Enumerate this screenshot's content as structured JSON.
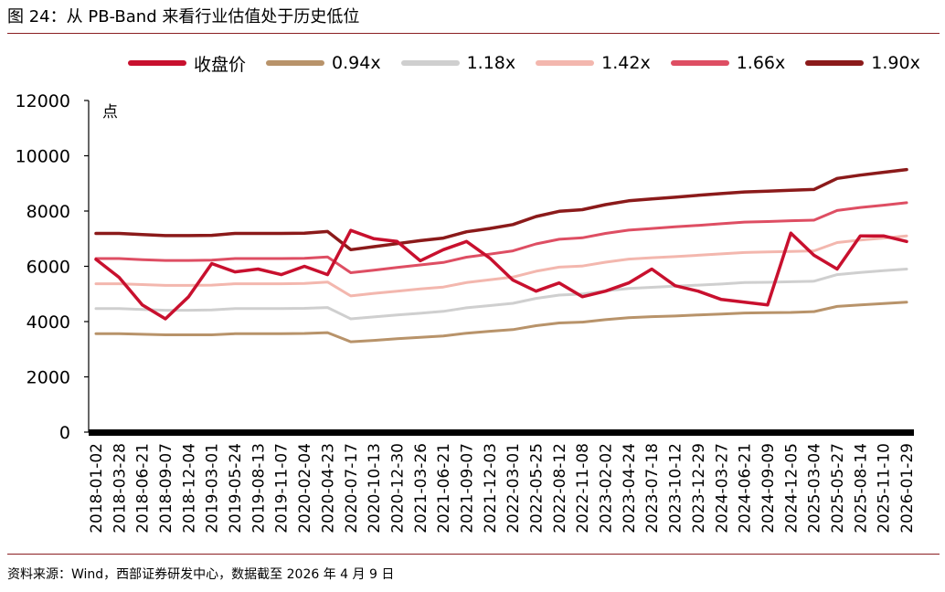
{
  "figure": {
    "title": "图 24：从 PB-Band 来看行业估值处于历史低位",
    "source": "资料来源：Wind，西部证券研发中心，数据截至 2026 年 4 月 9 日"
  },
  "chart_data": {
    "type": "line",
    "ylabel": "点",
    "xlabel": "",
    "ylim": [
      0,
      12000
    ],
    "yticks": [
      0,
      2000,
      4000,
      6000,
      8000,
      10000,
      12000
    ],
    "grid": false,
    "legend_position": "top",
    "x_tick_labels": [
      "2018-01-02",
      "2018-03-28",
      "2018-06-21",
      "2018-09-07",
      "2018-12-04",
      "2019-03-01",
      "2019-05-24",
      "2019-08-13",
      "2019-11-07",
      "2020-02-04",
      "2020-04-23",
      "2020-07-17",
      "2020-10-13",
      "2020-12-30",
      "2021-03-26",
      "2021-06-21",
      "2021-09-07",
      "2021-12-03",
      "2022-03-01",
      "2022-05-25",
      "2022-08-12",
      "2022-11-08",
      "2023-02-02",
      "2023-04-24",
      "2023-07-18",
      "2023-10-12",
      "2023-12-29",
      "2024-03-27",
      "2024-06-21",
      "2024-09-09",
      "2024-12-05",
      "2025-03-04",
      "2025-05-27",
      "2025-08-14",
      "2025-11-10",
      "2026-01-29"
    ],
    "series": [
      {
        "name": "收盘价",
        "color": "#c8102e",
        "width": 3.5,
        "values": [
          6250,
          5600,
          4600,
          4100,
          4900,
          6100,
          5800,
          5900,
          5700,
          6000,
          5700,
          7300,
          7000,
          6900,
          6200,
          6600,
          6900,
          6300,
          5500,
          5100,
          5400,
          4900,
          5100,
          5400,
          5900,
          5300,
          5100,
          4800,
          4700,
          4600,
          7200,
          6400,
          5900,
          7100,
          7100,
          6900
        ]
      },
      {
        "name": "0.94x",
        "color": "#b8936a",
        "width": 3,
        "values": [
          3560,
          3560,
          3540,
          3520,
          3520,
          3520,
          3560,
          3560,
          3560,
          3570,
          3600,
          3270,
          3320,
          3380,
          3430,
          3480,
          3580,
          3650,
          3710,
          3850,
          3950,
          3980,
          4070,
          4140,
          4180,
          4200,
          4240,
          4270,
          4310,
          4320,
          4330,
          4360,
          4550,
          4600,
          4650,
          4700
        ]
      },
      {
        "name": "1.18x",
        "color": "#cfcfcf",
        "width": 3,
        "values": [
          4470,
          4470,
          4440,
          4410,
          4410,
          4420,
          4470,
          4470,
          4470,
          4480,
          4510,
          4100,
          4170,
          4240,
          4300,
          4370,
          4500,
          4580,
          4660,
          4840,
          4960,
          5000,
          5110,
          5200,
          5240,
          5280,
          5320,
          5360,
          5410,
          5420,
          5440,
          5460,
          5700,
          5780,
          5840,
          5900
        ]
      },
      {
        "name": "1.42x",
        "color": "#f3b7ae",
        "width": 3,
        "values": [
          5370,
          5370,
          5340,
          5310,
          5310,
          5320,
          5370,
          5370,
          5370,
          5380,
          5430,
          4930,
          5020,
          5100,
          5180,
          5250,
          5410,
          5510,
          5610,
          5820,
          5970,
          6010,
          6150,
          6260,
          6310,
          6350,
          6400,
          6450,
          6500,
          6520,
          6540,
          6560,
          6860,
          6950,
          7020,
          7100
        ]
      },
      {
        "name": "1.66x",
        "color": "#de4e63",
        "width": 3,
        "values": [
          6280,
          6280,
          6240,
          6210,
          6210,
          6220,
          6280,
          6280,
          6280,
          6290,
          6340,
          5770,
          5860,
          5960,
          6050,
          6140,
          6330,
          6440,
          6560,
          6810,
          6980,
          7030,
          7190,
          7310,
          7370,
          7430,
          7480,
          7540,
          7600,
          7620,
          7650,
          7670,
          8020,
          8130,
          8210,
          8300
        ]
      },
      {
        "name": "1.90x",
        "color": "#8b1a1a",
        "width": 3.5,
        "values": [
          7190,
          7190,
          7150,
          7110,
          7110,
          7120,
          7190,
          7190,
          7190,
          7200,
          7260,
          6600,
          6710,
          6820,
          6930,
          7020,
          7250,
          7370,
          7510,
          7800,
          7990,
          8050,
          8230,
          8370,
          8440,
          8500,
          8570,
          8630,
          8690,
          8720,
          8750,
          8780,
          9180,
          9300,
          9400,
          9500
        ]
      }
    ]
  }
}
